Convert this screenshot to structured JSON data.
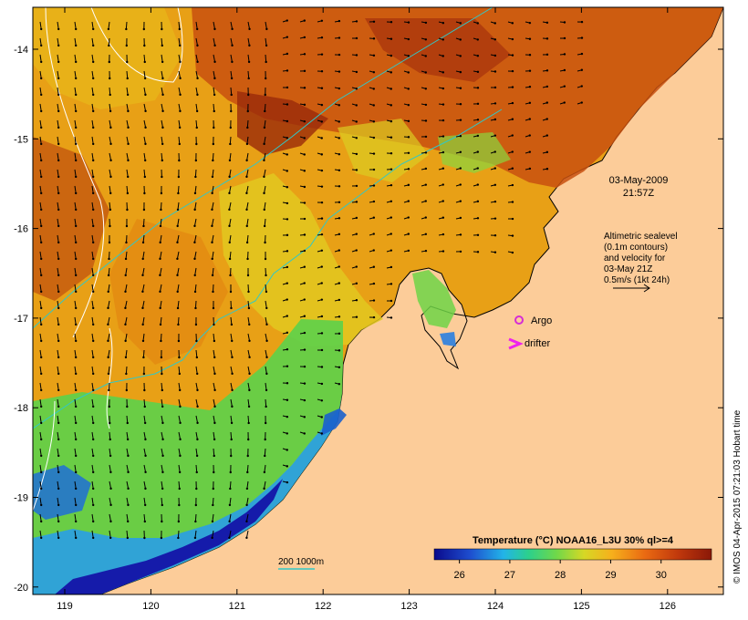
{
  "map": {
    "lon_ticks": [
      "119",
      "120",
      "121",
      "122",
      "123",
      "124",
      "125",
      "126"
    ],
    "lat_ticks": [
      "-14",
      "-15",
      "-16",
      "-17",
      "-18",
      "-19",
      "-20"
    ],
    "date_line1": "03-May-2009",
    "date_line2": "21:57Z",
    "legend_lines": [
      "Altimetric sealevel",
      "(0.1m contours)",
      "and velocity for",
      "03-May 21Z",
      "0.5m/s (1kt 24h)"
    ],
    "argo_label": "Argo",
    "drifter_label": "drifter",
    "bathy_label": "200  1000m",
    "credit": "© IMOS 04-Apr-2015 07:21:03 Hobart time"
  },
  "colorbar": {
    "title": "Temperature (°C) NOAA16_L3U 30% ql>=4",
    "ticks": [
      "26",
      "27",
      "28",
      "29",
      "30"
    ],
    "range": [
      25.5,
      31.0
    ]
  },
  "colors": {
    "land": "#fccc99",
    "argo": "#d62cd6",
    "drifter": "#ee22ee",
    "bathy": "#30c8c8",
    "sealevel_contour": "#ffffff"
  }
}
